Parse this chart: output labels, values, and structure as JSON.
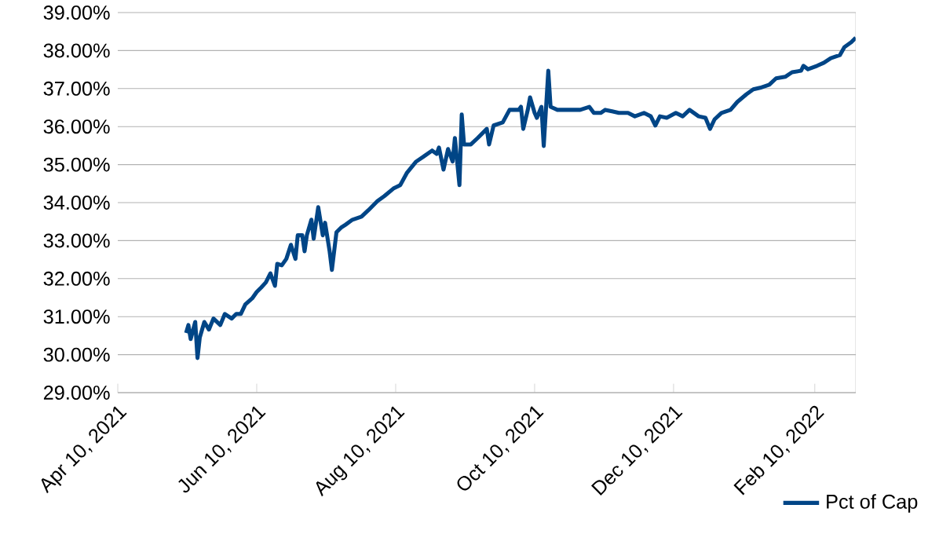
{
  "chart_data": {
    "type": "line",
    "x": [
      "2021-05-10",
      "2021-05-11",
      "2021-05-12",
      "2021-05-14",
      "2021-05-15",
      "2021-05-16",
      "2021-05-18",
      "2021-05-20",
      "2021-05-22",
      "2021-05-25",
      "2021-05-27",
      "2021-05-30",
      "2021-06-01",
      "2021-06-03",
      "2021-06-05",
      "2021-06-08",
      "2021-06-10",
      "2021-06-12",
      "2021-06-14",
      "2021-06-16",
      "2021-06-18",
      "2021-06-19",
      "2021-06-21",
      "2021-06-23",
      "2021-06-25",
      "2021-06-27",
      "2021-06-28",
      "2021-06-30",
      "2021-07-01",
      "2021-07-02",
      "2021-07-04",
      "2021-07-05",
      "2021-07-07",
      "2021-07-09",
      "2021-07-10",
      "2021-07-12",
      "2021-07-13",
      "2021-07-15",
      "2021-07-17",
      "2021-07-19",
      "2021-07-22",
      "2021-07-26",
      "2021-07-29",
      "2021-08-02",
      "2021-08-05",
      "2021-08-09",
      "2021-08-12",
      "2021-08-15",
      "2021-08-19",
      "2021-08-22",
      "2021-08-26",
      "2021-08-28",
      "2021-08-29",
      "2021-08-31",
      "2021-09-02",
      "2021-09-04",
      "2021-09-05",
      "2021-09-07",
      "2021-09-08",
      "2021-09-09",
      "2021-09-12",
      "2021-09-15",
      "2021-09-19",
      "2021-09-20",
      "2021-09-22",
      "2021-09-26",
      "2021-09-29",
      "2021-10-03",
      "2021-10-04",
      "2021-10-05",
      "2021-10-07",
      "2021-10-08",
      "2021-10-10",
      "2021-10-11",
      "2021-10-13",
      "2021-10-14",
      "2021-10-16",
      "2021-10-17",
      "2021-10-20",
      "2021-10-23",
      "2021-10-27",
      "2021-10-30",
      "2021-11-03",
      "2021-11-05",
      "2021-11-08",
      "2021-11-10",
      "2021-11-13",
      "2021-11-16",
      "2021-11-20",
      "2021-11-23",
      "2021-11-27",
      "2021-11-30",
      "2021-12-02",
      "2021-12-04",
      "2021-12-07",
      "2021-12-11",
      "2021-12-14",
      "2021-12-17",
      "2021-12-21",
      "2021-12-24",
      "2021-12-26",
      "2021-12-28",
      "2021-12-31",
      "2022-01-04",
      "2022-01-07",
      "2022-01-11",
      "2022-01-14",
      "2022-01-17",
      "2022-01-21",
      "2022-01-24",
      "2022-01-28",
      "2022-01-31",
      "2022-02-04",
      "2022-02-05",
      "2022-02-07",
      "2022-02-11",
      "2022-02-14",
      "2022-02-17",
      "2022-02-21",
      "2022-02-23",
      "2022-02-26",
      "2022-02-28"
    ],
    "series": [
      {
        "name": "Pct of Cap",
        "color": "#004586",
        "values": [
          30.57,
          30.78,
          30.41,
          30.86,
          29.91,
          30.45,
          30.86,
          30.66,
          30.95,
          30.78,
          31.07,
          30.95,
          31.07,
          31.07,
          31.32,
          31.48,
          31.65,
          31.77,
          31.9,
          32.14,
          31.81,
          32.39,
          32.35,
          32.52,
          32.89,
          32.52,
          33.14,
          33.14,
          32.72,
          33.14,
          33.55,
          33.05,
          33.88,
          33.14,
          33.47,
          32.72,
          32.23,
          33.22,
          33.34,
          33.42,
          33.55,
          33.63,
          33.8,
          34.04,
          34.17,
          34.37,
          34.46,
          34.79,
          35.08,
          35.2,
          35.37,
          35.28,
          35.45,
          34.87,
          35.41,
          35.08,
          35.7,
          34.46,
          36.32,
          35.53,
          35.53,
          35.7,
          35.94,
          35.53,
          36.03,
          36.11,
          36.44,
          36.44,
          36.52,
          35.94,
          36.44,
          36.77,
          36.36,
          36.23,
          36.52,
          35.49,
          37.47,
          36.52,
          36.44,
          36.44,
          36.44,
          36.44,
          36.52,
          36.36,
          36.36,
          36.44,
          36.4,
          36.36,
          36.36,
          36.27,
          36.36,
          36.27,
          36.03,
          36.27,
          36.23,
          36.36,
          36.27,
          36.44,
          36.27,
          36.23,
          35.94,
          36.19,
          36.36,
          36.44,
          36.65,
          36.85,
          36.98,
          37.02,
          37.1,
          37.27,
          37.31,
          37.43,
          37.47,
          37.6,
          37.51,
          37.6,
          37.68,
          37.8,
          37.88,
          38.09,
          38.22,
          38.34
        ]
      }
    ],
    "xlim": [
      "2021-04-10",
      "2022-02-28"
    ],
    "xticks": [
      {
        "value": "2021-04-10",
        "label": "Apr 10, 2021"
      },
      {
        "value": "2021-06-10",
        "label": "Jun 10, 2021"
      },
      {
        "value": "2021-08-10",
        "label": "Aug 10, 2021"
      },
      {
        "value": "2021-10-10",
        "label": "Oct 10, 2021"
      },
      {
        "value": "2021-12-10",
        "label": "Dec 10, 2021"
      },
      {
        "value": "2022-02-10",
        "label": "Feb 10, 2022"
      }
    ],
    "ylim": [
      29,
      39
    ],
    "yticks": [
      {
        "value": 29,
        "label": "29.00%"
      },
      {
        "value": 30,
        "label": "30.00%"
      },
      {
        "value": 31,
        "label": "31.00%"
      },
      {
        "value": 32,
        "label": "32.00%"
      },
      {
        "value": 33,
        "label": "33.00%"
      },
      {
        "value": 34,
        "label": "34.00%"
      },
      {
        "value": 35,
        "label": "35.00%"
      },
      {
        "value": 36,
        "label": "36.00%"
      },
      {
        "value": 37,
        "label": "37.00%"
      },
      {
        "value": 38,
        "label": "38.00%"
      },
      {
        "value": 39,
        "label": "39.00%"
      }
    ],
    "grid": "y",
    "legend": "bottom right",
    "marker": "none",
    "line_style": "solid"
  }
}
